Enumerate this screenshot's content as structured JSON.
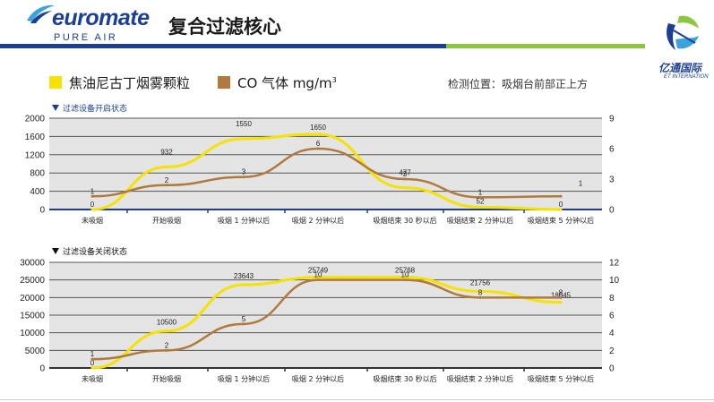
{
  "header": {
    "brand": "euromate",
    "brand_sub": "PURE AIR",
    "title": "复合过滤核心",
    "brand2_cn": "亿通国际",
    "brand2_en": "ET INTERNATION"
  },
  "legend": {
    "series1": "焦油尼古丁烟雾颗粒",
    "series2_main": "CO 气体 mg/m",
    "series2_sup": "3",
    "location": "检测位置：吸烟台前部正上方",
    "colors": {
      "series1": "#f5e200",
      "series2": "#b07a3c"
    }
  },
  "chart_data": [
    {
      "type": "line",
      "title": "过滤设备开启状态",
      "categories": [
        "未吸烟",
        "开始吸烟",
        "吸烟 1 分钟以后",
        "吸烟 2 分钟以后",
        "吸烟结束 30 秒以后",
        "吸烟结束 2 分钟以后",
        "吸烟结束 5 分钟以后"
      ],
      "left_ylim": [
        0,
        2000
      ],
      "left_ticks": [
        "2000",
        "1600",
        "1200",
        "800",
        "400",
        "0"
      ],
      "right_ylim": [
        0,
        9
      ],
      "right_ticks": [
        "9",
        "6",
        "3",
        "0"
      ],
      "series": [
        {
          "name": "焦油尼古丁烟雾颗粒",
          "axis": "left",
          "color": "#f5e200",
          "values": [
            0,
            932,
            1550,
            1650,
            477,
            52,
            0
          ],
          "labels": [
            "0",
            "932",
            "1550",
            "1650",
            "477",
            "52",
            "0"
          ]
        },
        {
          "name": "CO 气体 mg/m3",
          "axis": "right",
          "color": "#b07a3c",
          "values": [
            1.3,
            2.4,
            3.2,
            6,
            3,
            1.2,
            1.3
          ],
          "labels": [
            "1",
            "2",
            "3",
            "6",
            "3",
            "1",
            "1"
          ]
        }
      ]
    },
    {
      "type": "line",
      "title": "过滤设备关闭状态",
      "categories": [
        "未吸烟",
        "开始吸烟",
        "吸烟 1 分钟以后",
        "吸烟 2 分钟以后",
        "吸烟结束 30 秒以后",
        "吸烟结束 2 分钟以后",
        "吸烟结束 5 分钟以后"
      ],
      "left_ylim": [
        0,
        30000
      ],
      "left_ticks": [
        "30000",
        "25000",
        "20000",
        "15000",
        "10000",
        "5000",
        "0"
      ],
      "right_ylim": [
        0,
        12
      ],
      "right_ticks": [
        "12",
        "10",
        "8",
        "6",
        "4",
        "2",
        "0"
      ],
      "series": [
        {
          "name": "焦油尼古丁烟雾颗粒",
          "axis": "left",
          "color": "#f5e200",
          "values": [
            0,
            10500,
            23643,
            25749,
            25768,
            21756,
            18645
          ],
          "labels": [
            "0",
            "10500",
            "23643",
            "25749",
            "25768",
            "21756",
            "18645"
          ]
        },
        {
          "name": "CO 气体 mg/m3",
          "axis": "right",
          "color": "#b07a3c",
          "values": [
            1,
            2,
            5,
            10,
            10,
            8,
            8
          ],
          "labels": [
            "1",
            "2",
            "5",
            "10",
            "10",
            "8",
            "8"
          ]
        }
      ]
    }
  ]
}
